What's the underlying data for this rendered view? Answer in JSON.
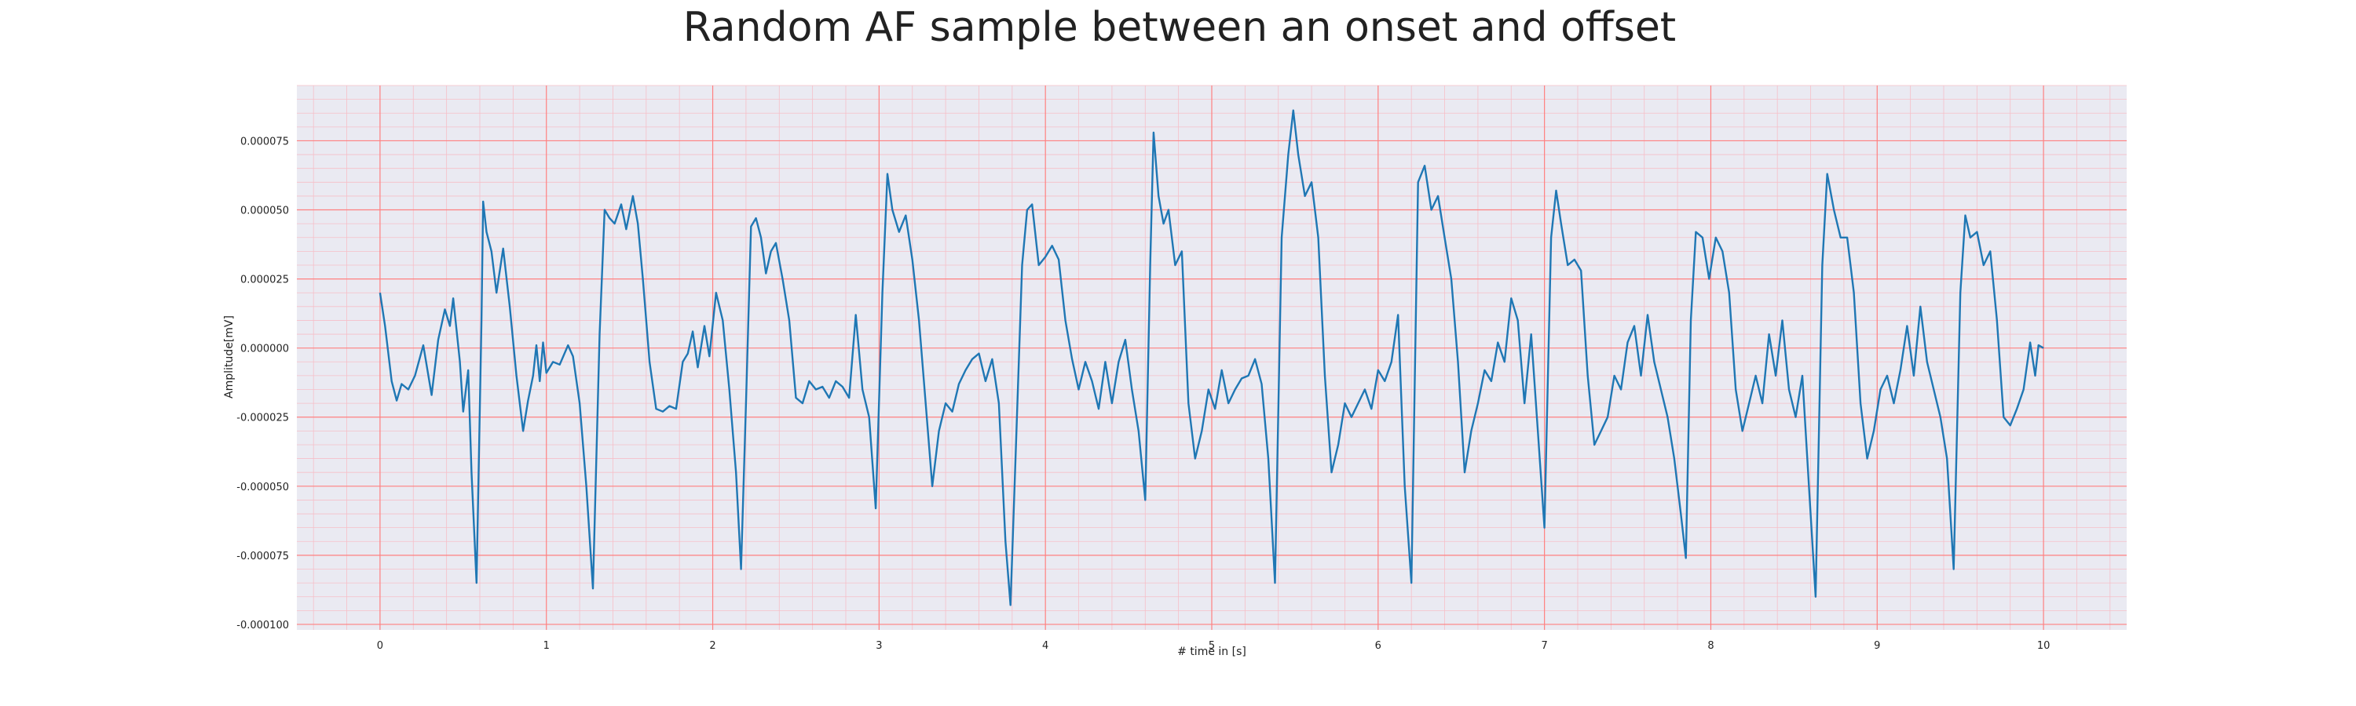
{
  "chart_data": {
    "type": "line",
    "title": "Random AF sample between an onset and offset",
    "xlabel": "# time in [s]",
    "ylabel": "Amplitude[mV]",
    "xlim": [
      -0.5,
      10.5
    ],
    "ylim": [
      -0.000102,
      9.5e-05
    ],
    "x_ticks": [
      0,
      1,
      2,
      3,
      4,
      5,
      6,
      7,
      8,
      9,
      10
    ],
    "x_tick_labels": [
      "0",
      "1",
      "2",
      "3",
      "4",
      "5",
      "6",
      "7",
      "8",
      "9",
      "10"
    ],
    "y_ticks": [
      -0.0001,
      -7.5e-05,
      -5e-05,
      -2.5e-05,
      0,
      2.5e-05,
      5e-05,
      7.5e-05
    ],
    "y_tick_labels": [
      "-0.000100",
      "-0.000075",
      "-0.000050",
      "-0.000025",
      "0.000000",
      "0.000025",
      "0.000050",
      "0.000075"
    ],
    "grid": true,
    "legend": "none",
    "colors": {
      "series": "#1f77b4",
      "background": "#eaeaf2",
      "major_grid": "#ff8080",
      "minor_grid": "#f6bfc8"
    },
    "series": [
      {
        "values": [
          [
            0.0,
            2e-05
          ],
          [
            0.03,
            8e-06
          ],
          [
            0.07,
            -1.2e-05
          ],
          [
            0.1,
            -1.9e-05
          ],
          [
            0.13,
            -1.3e-05
          ],
          [
            0.17,
            -1.5e-05
          ],
          [
            0.21,
            -1e-05
          ],
          [
            0.26,
            1e-06
          ],
          [
            0.31,
            -1.7e-05
          ],
          [
            0.35,
            3e-06
          ],
          [
            0.39,
            1.4e-05
          ],
          [
            0.42,
            8e-06
          ],
          [
            0.44,
            1.8e-05
          ],
          [
            0.48,
            -5e-06
          ],
          [
            0.5,
            -2.3e-05
          ],
          [
            0.53,
            -8e-06
          ],
          [
            0.55,
            -4.5e-05
          ],
          [
            0.58,
            -8.5e-05
          ],
          [
            0.61,
            1e-05
          ],
          [
            0.62,
            5.3e-05
          ],
          [
            0.64,
            4.2e-05
          ],
          [
            0.67,
            3.5e-05
          ],
          [
            0.7,
            2e-05
          ],
          [
            0.74,
            3.6e-05
          ],
          [
            0.78,
            1.5e-05
          ],
          [
            0.82,
            -1e-05
          ],
          [
            0.86,
            -3e-05
          ],
          [
            0.89,
            -1.9e-05
          ],
          [
            0.92,
            -1e-05
          ],
          [
            0.94,
            1e-06
          ],
          [
            0.96,
            -1.2e-05
          ],
          [
            0.98,
            2e-06
          ],
          [
            1.0,
            -9e-06
          ],
          [
            1.04,
            -5e-06
          ],
          [
            1.08,
            -6e-06
          ],
          [
            1.13,
            1e-06
          ],
          [
            1.16,
            -3e-06
          ],
          [
            1.2,
            -2e-05
          ],
          [
            1.24,
            -5e-05
          ],
          [
            1.28,
            -8.7e-05
          ],
          [
            1.32,
            5e-06
          ],
          [
            1.35,
            5e-05
          ],
          [
            1.38,
            4.7e-05
          ],
          [
            1.41,
            4.5e-05
          ],
          [
            1.45,
            5.2e-05
          ],
          [
            1.48,
            4.3e-05
          ],
          [
            1.52,
            5.5e-05
          ],
          [
            1.55,
            4.5e-05
          ],
          [
            1.58,
            2.5e-05
          ],
          [
            1.62,
            -5e-06
          ],
          [
            1.66,
            -2.2e-05
          ],
          [
            1.7,
            -2.3e-05
          ],
          [
            1.74,
            -2.1e-05
          ],
          [
            1.78,
            -2.2e-05
          ],
          [
            1.82,
            -5e-06
          ],
          [
            1.85,
            -2e-06
          ],
          [
            1.88,
            6e-06
          ],
          [
            1.91,
            -7e-06
          ],
          [
            1.95,
            8e-06
          ],
          [
            1.98,
            -3e-06
          ],
          [
            2.02,
            2e-05
          ],
          [
            2.06,
            1e-05
          ],
          [
            2.1,
            -1.5e-05
          ],
          [
            2.14,
            -4.5e-05
          ],
          [
            2.17,
            -8e-05
          ],
          [
            2.2,
            -2e-05
          ],
          [
            2.23,
            4.4e-05
          ],
          [
            2.26,
            4.7e-05
          ],
          [
            2.29,
            4e-05
          ],
          [
            2.32,
            2.7e-05
          ],
          [
            2.35,
            3.5e-05
          ],
          [
            2.38,
            3.8e-05
          ],
          [
            2.42,
            2.5e-05
          ],
          [
            2.46,
            1e-05
          ],
          [
            2.5,
            -1.8e-05
          ],
          [
            2.54,
            -2e-05
          ],
          [
            2.58,
            -1.2e-05
          ],
          [
            2.62,
            -1.5e-05
          ],
          [
            2.66,
            -1.4e-05
          ],
          [
            2.7,
            -1.8e-05
          ],
          [
            2.74,
            -1.2e-05
          ],
          [
            2.78,
            -1.4e-05
          ],
          [
            2.82,
            -1.8e-05
          ],
          [
            2.86,
            1.2e-05
          ],
          [
            2.9,
            -1.5e-05
          ],
          [
            2.94,
            -2.5e-05
          ],
          [
            2.98,
            -5.8e-05
          ],
          [
            3.02,
            2e-05
          ],
          [
            3.05,
            6.3e-05
          ],
          [
            3.08,
            5e-05
          ],
          [
            3.12,
            4.2e-05
          ],
          [
            3.16,
            4.8e-05
          ],
          [
            3.2,
            3.2e-05
          ],
          [
            3.24,
            1e-05
          ],
          [
            3.28,
            -2e-05
          ],
          [
            3.32,
            -5e-05
          ],
          [
            3.36,
            -3e-05
          ],
          [
            3.4,
            -2e-05
          ],
          [
            3.44,
            -2.3e-05
          ],
          [
            3.48,
            -1.3e-05
          ],
          [
            3.52,
            -8e-06
          ],
          [
            3.56,
            -4e-06
          ],
          [
            3.6,
            -2e-06
          ],
          [
            3.64,
            -1.2e-05
          ],
          [
            3.68,
            -4e-06
          ],
          [
            3.72,
            -2e-05
          ],
          [
            3.76,
            -7e-05
          ],
          [
            3.79,
            -9.3e-05
          ],
          [
            3.82,
            -4e-05
          ],
          [
            3.86,
            3e-05
          ],
          [
            3.89,
            5e-05
          ],
          [
            3.92,
            5.2e-05
          ],
          [
            3.96,
            3e-05
          ],
          [
            4.0,
            3.3e-05
          ],
          [
            4.04,
            3.7e-05
          ],
          [
            4.08,
            3.2e-05
          ],
          [
            4.12,
            1e-05
          ],
          [
            4.16,
            -4e-06
          ],
          [
            4.2,
            -1.5e-05
          ],
          [
            4.24,
            -5e-06
          ],
          [
            4.28,
            -1.2e-05
          ],
          [
            4.32,
            -2.2e-05
          ],
          [
            4.36,
            -5e-06
          ],
          [
            4.4,
            -2e-05
          ],
          [
            4.44,
            -5e-06
          ],
          [
            4.48,
            3e-06
          ],
          [
            4.52,
            -1.5e-05
          ],
          [
            4.56,
            -3e-05
          ],
          [
            4.6,
            -5.5e-05
          ],
          [
            4.63,
            3e-05
          ],
          [
            4.65,
            7.8e-05
          ],
          [
            4.68,
            5.5e-05
          ],
          [
            4.71,
            4.5e-05
          ],
          [
            4.74,
            5e-05
          ],
          [
            4.78,
            3e-05
          ],
          [
            4.82,
            3.5e-05
          ],
          [
            4.86,
            -2e-05
          ],
          [
            4.9,
            -4e-05
          ],
          [
            4.94,
            -3e-05
          ],
          [
            4.98,
            -1.5e-05
          ],
          [
            5.02,
            -2.2e-05
          ],
          [
            5.06,
            -8e-06
          ],
          [
            5.1,
            -2e-05
          ],
          [
            5.14,
            -1.5e-05
          ],
          [
            5.18,
            -1.1e-05
          ],
          [
            5.22,
            -1e-05
          ],
          [
            5.26,
            -4e-06
          ],
          [
            5.3,
            -1.3e-05
          ],
          [
            5.34,
            -4e-05
          ],
          [
            5.38,
            -8.5e-05
          ],
          [
            5.42,
            4e-05
          ],
          [
            5.46,
            7e-05
          ],
          [
            5.49,
            8.6e-05
          ],
          [
            5.52,
            7e-05
          ],
          [
            5.56,
            5.5e-05
          ],
          [
            5.6,
            6e-05
          ],
          [
            5.64,
            4e-05
          ],
          [
            5.68,
            -1e-05
          ],
          [
            5.72,
            -4.5e-05
          ],
          [
            5.76,
            -3.5e-05
          ],
          [
            5.8,
            -2e-05
          ],
          [
            5.84,
            -2.5e-05
          ],
          [
            5.88,
            -2e-05
          ],
          [
            5.92,
            -1.5e-05
          ],
          [
            5.96,
            -2.2e-05
          ],
          [
            6.0,
            -8e-06
          ],
          [
            6.04,
            -1.2e-05
          ],
          [
            6.08,
            -5e-06
          ],
          [
            6.12,
            1.2e-05
          ],
          [
            6.16,
            -5e-05
          ],
          [
            6.2,
            -8.5e-05
          ],
          [
            6.24,
            6e-05
          ],
          [
            6.28,
            6.6e-05
          ],
          [
            6.32,
            5e-05
          ],
          [
            6.36,
            5.5e-05
          ],
          [
            6.4,
            4e-05
          ],
          [
            6.44,
            2.5e-05
          ],
          [
            6.48,
            -5e-06
          ],
          [
            6.52,
            -4.5e-05
          ],
          [
            6.56,
            -3e-05
          ],
          [
            6.6,
            -2e-05
          ],
          [
            6.64,
            -8e-06
          ],
          [
            6.68,
            -1.2e-05
          ],
          [
            6.72,
            2e-06
          ],
          [
            6.76,
            -5e-06
          ],
          [
            6.8,
            1.8e-05
          ],
          [
            6.84,
            1e-05
          ],
          [
            6.88,
            -2e-05
          ],
          [
            6.92,
            5e-06
          ],
          [
            6.96,
            -3e-05
          ],
          [
            7.0,
            -6.5e-05
          ],
          [
            7.04,
            4e-05
          ],
          [
            7.07,
            5.7e-05
          ],
          [
            7.1,
            4.5e-05
          ],
          [
            7.14,
            3e-05
          ],
          [
            7.18,
            3.2e-05
          ],
          [
            7.22,
            2.8e-05
          ],
          [
            7.26,
            -1e-05
          ],
          [
            7.3,
            -3.5e-05
          ],
          [
            7.34,
            -3e-05
          ],
          [
            7.38,
            -2.5e-05
          ],
          [
            7.42,
            -1e-05
          ],
          [
            7.46,
            -1.5e-05
          ],
          [
            7.5,
            2e-06
          ],
          [
            7.54,
            8e-06
          ],
          [
            7.58,
            -1e-05
          ],
          [
            7.62,
            1.2e-05
          ],
          [
            7.66,
            -5e-06
          ],
          [
            7.7,
            -1.5e-05
          ],
          [
            7.74,
            -2.5e-05
          ],
          [
            7.78,
            -4e-05
          ],
          [
            7.82,
            -6e-05
          ],
          [
            7.85,
            -7.6e-05
          ],
          [
            7.88,
            1e-05
          ],
          [
            7.91,
            4.2e-05
          ],
          [
            7.95,
            4e-05
          ],
          [
            7.99,
            2.5e-05
          ],
          [
            8.03,
            4e-05
          ],
          [
            8.07,
            3.5e-05
          ],
          [
            8.11,
            2e-05
          ],
          [
            8.15,
            -1.5e-05
          ],
          [
            8.19,
            -3e-05
          ],
          [
            8.23,
            -2e-05
          ],
          [
            8.27,
            -1e-05
          ],
          [
            8.31,
            -2e-05
          ],
          [
            8.35,
            5e-06
          ],
          [
            8.39,
            -1e-05
          ],
          [
            8.43,
            1e-05
          ],
          [
            8.47,
            -1.5e-05
          ],
          [
            8.51,
            -2.5e-05
          ],
          [
            8.55,
            -1e-05
          ],
          [
            8.59,
            -5e-05
          ],
          [
            8.63,
            -9e-05
          ],
          [
            8.67,
            3e-05
          ],
          [
            8.7,
            6.3e-05
          ],
          [
            8.74,
            5e-05
          ],
          [
            8.78,
            4e-05
          ],
          [
            8.82,
            4e-05
          ],
          [
            8.86,
            2e-05
          ],
          [
            8.9,
            -2e-05
          ],
          [
            8.94,
            -4e-05
          ],
          [
            8.98,
            -3e-05
          ],
          [
            9.02,
            -1.5e-05
          ],
          [
            9.06,
            -1e-05
          ],
          [
            9.1,
            -2e-05
          ],
          [
            9.14,
            -8e-06
          ],
          [
            9.18,
            8e-06
          ],
          [
            9.22,
            -1e-05
          ],
          [
            9.26,
            1.5e-05
          ],
          [
            9.3,
            -5e-06
          ],
          [
            9.34,
            -1.5e-05
          ],
          [
            9.38,
            -2.5e-05
          ],
          [
            9.42,
            -4e-05
          ],
          [
            9.46,
            -8e-05
          ],
          [
            9.5,
            2e-05
          ],
          [
            9.53,
            4.8e-05
          ],
          [
            9.56,
            4e-05
          ],
          [
            9.6,
            4.2e-05
          ],
          [
            9.64,
            3e-05
          ],
          [
            9.68,
            3.5e-05
          ],
          [
            9.72,
            1e-05
          ],
          [
            9.76,
            -2.5e-05
          ],
          [
            9.8,
            -2.8e-05
          ],
          [
            9.84,
            -2.2e-05
          ],
          [
            9.88,
            -1.5e-05
          ],
          [
            9.92,
            2e-06
          ],
          [
            9.95,
            -1e-05
          ],
          [
            9.97,
            1e-06
          ],
          [
            10.0,
            0.0
          ]
        ]
      }
    ]
  }
}
